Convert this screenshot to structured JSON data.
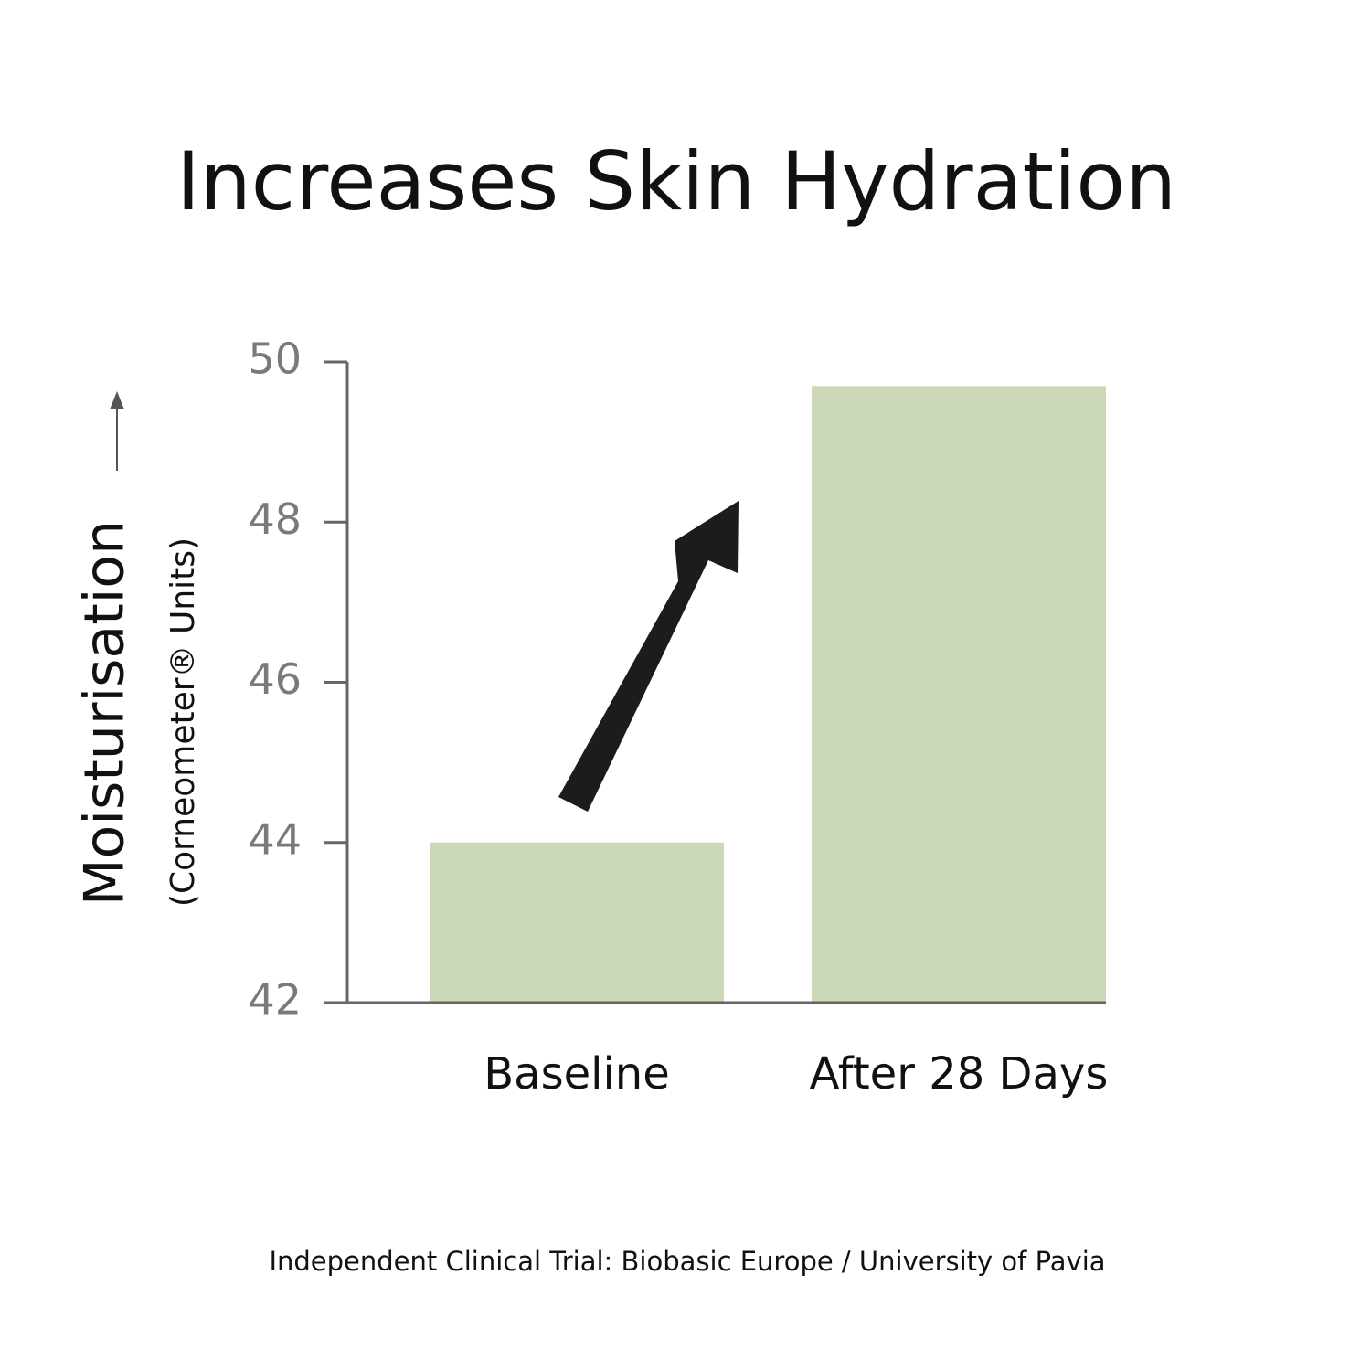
{
  "chart_data": {
    "type": "bar",
    "title": "Increases Skin Hydration",
    "y_axis_label": "Moisturisation",
    "y_axis_unit": "(Corneometer® Units)",
    "categories": [
      "Baseline",
      "After 28 Days"
    ],
    "values": [
      44,
      49.7
    ],
    "color": "#cbd9b9",
    "ylim": [
      42,
      50
    ],
    "yticks": [
      42,
      44,
      46,
      48,
      50
    ],
    "footnote": "Independent Clinical Trial: Biobasic Europe / University of Pavia"
  }
}
